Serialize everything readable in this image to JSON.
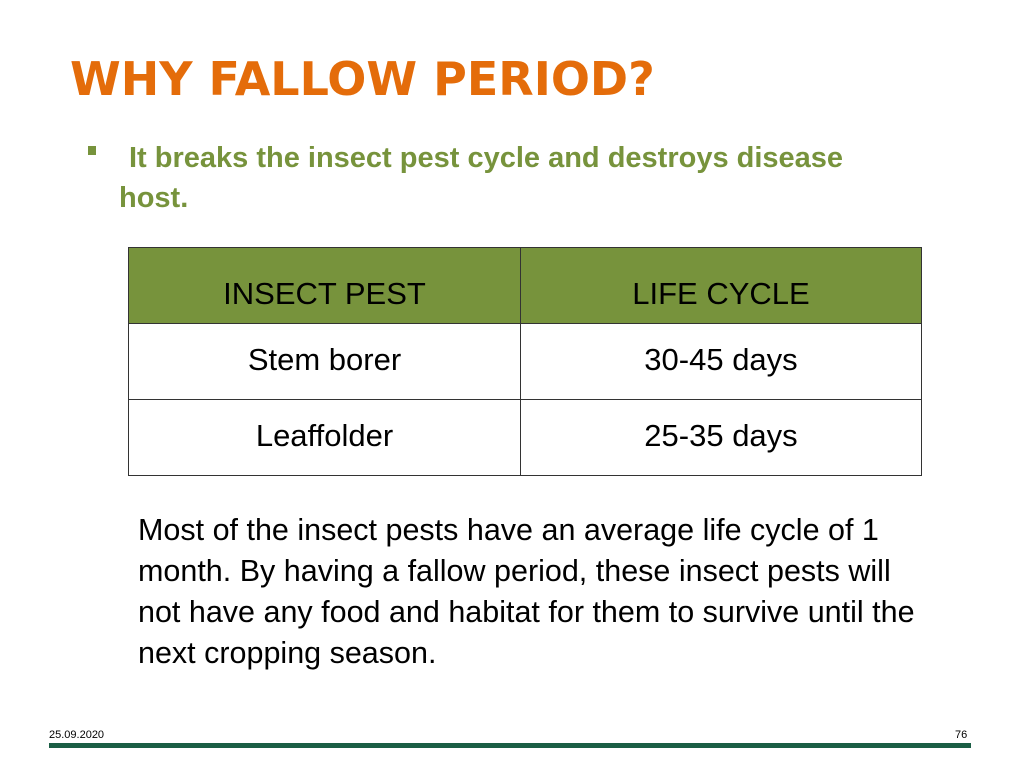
{
  "slide": {
    "title": "WHY FALLOW PERIOD?",
    "bullet": "It breaks the insect pest cycle and destroys disease host.",
    "table": {
      "headers": [
        "INSECT PEST",
        "LIFE CYCLE"
      ],
      "rows": [
        [
          "Stem borer",
          "30-45 days"
        ],
        [
          "Leaffolder",
          "25-35 days"
        ]
      ]
    },
    "paragraph": "Most of the insect pests have an average life cycle of 1 month. By having a fallow period, these insect pests will not have any food and habitat for them to survive until the next cropping season.",
    "footer": {
      "date": "25.09.2020",
      "page_number": "76"
    }
  },
  "colors": {
    "title": "#e46c0a",
    "accent_green": "#77933c",
    "footer_line": "#1b5e45"
  }
}
